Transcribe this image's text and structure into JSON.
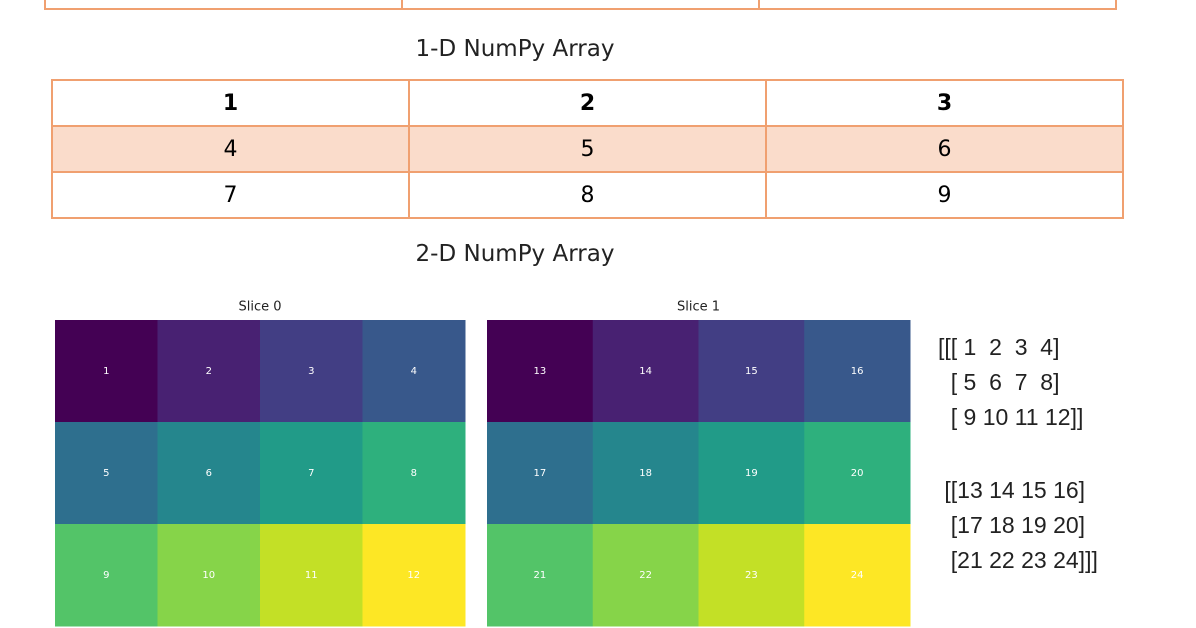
{
  "caption_1d": "1-D NumPy Array",
  "table": {
    "rows": [
      [
        1,
        2,
        3
      ],
      [
        4,
        5,
        6
      ],
      [
        7,
        8,
        9
      ]
    ]
  },
  "caption_2d": "2-D NumPy Array",
  "heatmaps": {
    "colormap": "viridis",
    "slices": [
      {
        "title": "Slice 0",
        "cells": [
          [
            1,
            2,
            3,
            4
          ],
          [
            5,
            6,
            7,
            8
          ],
          [
            9,
            10,
            11,
            12
          ]
        ]
      },
      {
        "title": "Slice 1",
        "cells": [
          [
            13,
            14,
            15,
            16
          ],
          [
            17,
            18,
            19,
            20
          ],
          [
            21,
            22,
            23,
            24
          ]
        ]
      }
    ]
  },
  "array_print": {
    "blocks": [
      [
        "[[[ 1  2  3  4]",
        "  [ 5  6  7  8]",
        "  [ 9 10 11 12]]"
      ],
      [
        " [[13 14 15 16]",
        "  [17 18 19 20]",
        "  [21 22 23 24]]]"
      ]
    ]
  }
}
